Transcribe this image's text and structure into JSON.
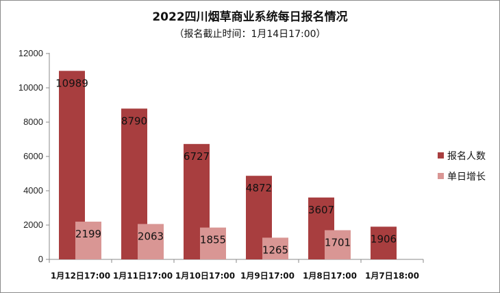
{
  "chart_data": {
    "type": "bar",
    "title": "2022四川烟草商业系统每日报名情况",
    "subtitle": "（报名截止时间：1月14日17:00）",
    "categories": [
      "1月12日17:00",
      "1月11日17:00",
      "1月10日17:00",
      "1月9日17:00",
      "1月8日17:00",
      "1月7日18:00"
    ],
    "series": [
      {
        "name": "报名人数",
        "color": "#a83e3f",
        "values": [
          10989,
          8790,
          6727,
          4872,
          3607,
          1906
        ]
      },
      {
        "name": "单日增长",
        "color": "#d99694",
        "values": [
          2199,
          2063,
          1855,
          1265,
          1701,
          null
        ]
      }
    ],
    "ylim": [
      0,
      12000
    ],
    "yticks": [
      0,
      2000,
      4000,
      6000,
      8000,
      10000,
      12000
    ],
    "xlabel": "",
    "ylabel": "",
    "grid": false,
    "legend_position": "right"
  }
}
